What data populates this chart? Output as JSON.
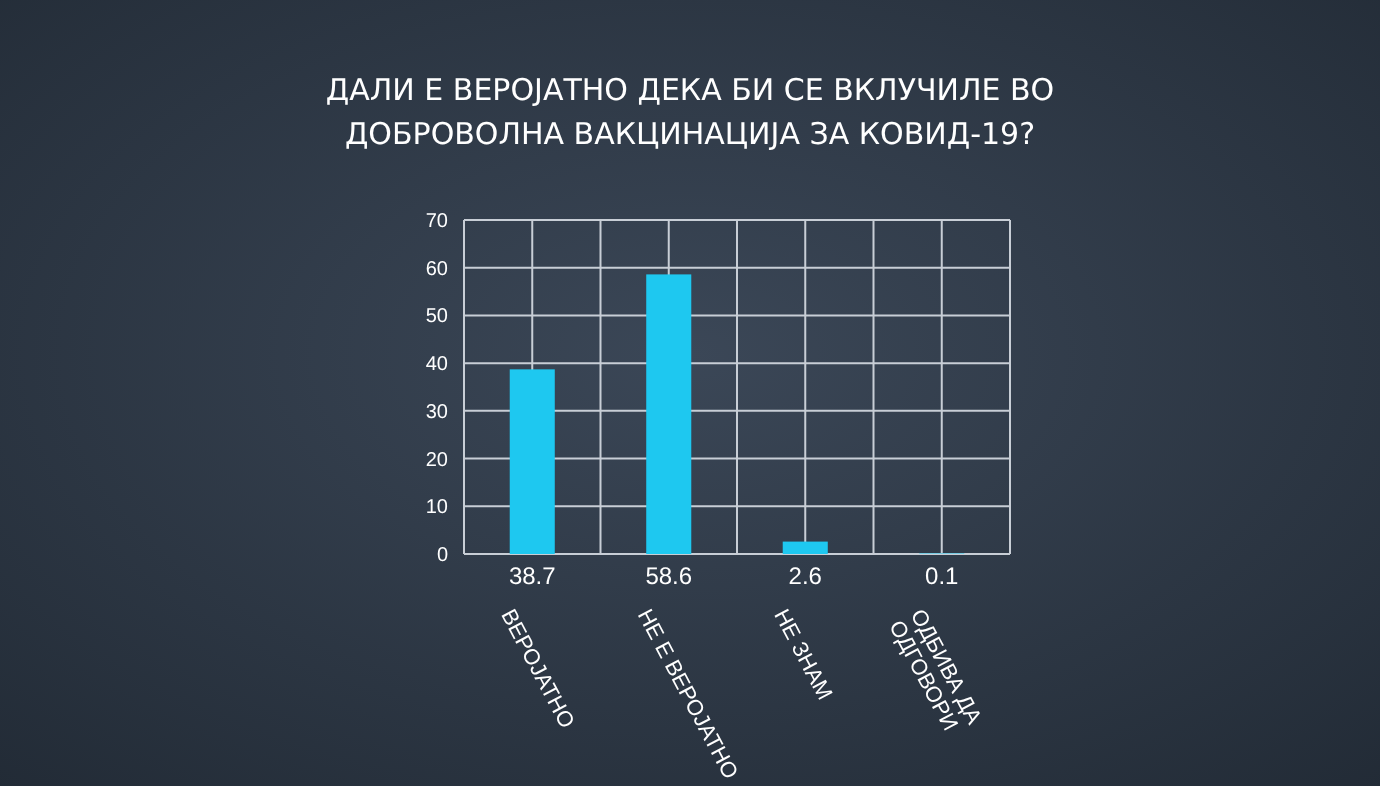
{
  "chart_data": {
    "type": "bar",
    "title": "ДАЛИ Е ВЕРОЈАТНО ДЕКА БИ СЕ ВКЛУЧИЛЕ ВО ДОБРОВОЛНА ВАКЦИНАЦИЈА ЗА КОВИД-19?",
    "categories": [
      "ВЕРОЈАТНО",
      "НЕ Е ВЕРОЈАТНО",
      "НЕ ЗНАМ",
      "ОДБИВА ДА ОДГОВОРИ"
    ],
    "values": [
      38.7,
      58.6,
      2.6,
      0.1
    ],
    "color": "#1ec8f0",
    "ylim": [
      0,
      70
    ],
    "yticks": [
      0,
      10,
      20,
      30,
      40,
      50,
      60,
      70
    ],
    "grid": true,
    "data_labels": true
  }
}
